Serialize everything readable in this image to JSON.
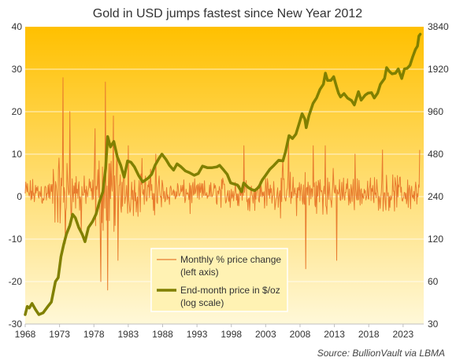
{
  "chart_data": {
    "type": "line",
    "title": "Gold in USD jumps fastest since New Year 2012",
    "source": "Source:  BullionVault via LBMA",
    "left_axis": {
      "label": "",
      "ticks": [
        40,
        30,
        20,
        10,
        0,
        -10,
        -20,
        -30
      ],
      "range": [
        -30,
        40
      ]
    },
    "right_axis": {
      "label": "",
      "scale": "log",
      "ticks": [
        3840,
        1920,
        960,
        480,
        240,
        120,
        60,
        30
      ],
      "range": [
        30,
        3840
      ]
    },
    "x_axis": {
      "ticks": [
        "1968",
        "1973",
        "1978",
        "1983",
        "1988",
        "1993",
        "1998",
        "2003",
        "2008",
        "2013",
        "2018",
        "2023"
      ],
      "range": [
        1968,
        2026
      ]
    },
    "legend_placement": "bottom-center",
    "background_gradient": {
      "top": "#ffc000",
      "bottom": "#fff8d8"
    },
    "grid": "horizontal",
    "series": [
      {
        "name": "Monthly % price change",
        "name_line2": "(left axis)",
        "axis": "left",
        "color": "#e87b2e",
        "peaks": [
          [
            1973.5,
            28
          ],
          [
            1973.8,
            -11
          ],
          [
            1974.5,
            20
          ],
          [
            1976.2,
            -9
          ],
          [
            1978.2,
            16
          ],
          [
            1979.0,
            -20
          ],
          [
            1979.7,
            27
          ],
          [
            1980.0,
            -22
          ],
          [
            1980.8,
            19
          ],
          [
            1981.5,
            -15
          ],
          [
            1983.0,
            12
          ],
          [
            1985.0,
            9
          ],
          [
            1987.0,
            10
          ],
          [
            1992.0,
            -4
          ],
          [
            1999.8,
            12
          ],
          [
            2005.5,
            9
          ],
          [
            2006.3,
            14
          ],
          [
            2008.8,
            -17
          ],
          [
            2009.9,
            12
          ],
          [
            2011.7,
            12
          ],
          [
            2013.3,
            -15
          ],
          [
            2016.0,
            10
          ],
          [
            2020.0,
            11
          ],
          [
            2025.4,
            11
          ]
        ]
      },
      {
        "name": "End-month price in $/oz",
        "name_line2": "(log scale)",
        "axis": "right",
        "color": "#808000",
        "points": [
          [
            1968.0,
            35
          ],
          [
            1968.3,
            40
          ],
          [
            1968.6,
            39
          ],
          [
            1969.0,
            42
          ],
          [
            1969.5,
            38
          ],
          [
            1970.0,
            35
          ],
          [
            1970.6,
            36
          ],
          [
            1971.3,
            40
          ],
          [
            1971.8,
            43
          ],
          [
            1972.4,
            60
          ],
          [
            1972.8,
            64
          ],
          [
            1973.2,
            90
          ],
          [
            1973.6,
            110
          ],
          [
            1974.0,
            130
          ],
          [
            1974.5,
            150
          ],
          [
            1974.9,
            180
          ],
          [
            1975.3,
            170
          ],
          [
            1975.8,
            145
          ],
          [
            1976.3,
            130
          ],
          [
            1976.7,
            115
          ],
          [
            1977.2,
            145
          ],
          [
            1977.8,
            160
          ],
          [
            1978.3,
            180
          ],
          [
            1978.8,
            220
          ],
          [
            1979.3,
            260
          ],
          [
            1979.7,
            380
          ],
          [
            1980.0,
            640
          ],
          [
            1980.4,
            540
          ],
          [
            1980.9,
            590
          ],
          [
            1981.4,
            460
          ],
          [
            1981.9,
            400
          ],
          [
            1982.4,
            330
          ],
          [
            1982.9,
            430
          ],
          [
            1983.4,
            420
          ],
          [
            1983.9,
            390
          ],
          [
            1984.5,
            340
          ],
          [
            1985.1,
            305
          ],
          [
            1985.9,
            325
          ],
          [
            1986.4,
            345
          ],
          [
            1986.9,
            400
          ],
          [
            1987.5,
            450
          ],
          [
            1987.9,
            480
          ],
          [
            1988.5,
            440
          ],
          [
            1989.0,
            400
          ],
          [
            1989.6,
            370
          ],
          [
            1990.1,
            410
          ],
          [
            1990.7,
            390
          ],
          [
            1991.3,
            365
          ],
          [
            1991.9,
            355
          ],
          [
            1992.6,
            340
          ],
          [
            1993.2,
            350
          ],
          [
            1993.8,
            395
          ],
          [
            1994.5,
            385
          ],
          [
            1995.2,
            385
          ],
          [
            1995.9,
            390
          ],
          [
            1996.3,
            400
          ],
          [
            1996.9,
            370
          ],
          [
            1997.4,
            345
          ],
          [
            1997.9,
            300
          ],
          [
            1998.4,
            295
          ],
          [
            1998.9,
            290
          ],
          [
            1999.5,
            260
          ],
          [
            1999.8,
            300
          ],
          [
            2000.4,
            280
          ],
          [
            2000.9,
            270
          ],
          [
            2001.4,
            265
          ],
          [
            2002.0,
            280
          ],
          [
            2002.5,
            315
          ],
          [
            2003.0,
            340
          ],
          [
            2003.6,
            375
          ],
          [
            2004.2,
            400
          ],
          [
            2004.9,
            435
          ],
          [
            2005.5,
            430
          ],
          [
            2005.9,
            500
          ],
          [
            2006.4,
            650
          ],
          [
            2006.9,
            620
          ],
          [
            2007.4,
            665
          ],
          [
            2007.9,
            800
          ],
          [
            2008.3,
            930
          ],
          [
            2008.7,
            850
          ],
          [
            2008.9,
            740
          ],
          [
            2009.3,
            900
          ],
          [
            2009.9,
            1100
          ],
          [
            2010.4,
            1200
          ],
          [
            2010.9,
            1380
          ],
          [
            2011.4,
            1500
          ],
          [
            2011.7,
            1800
          ],
          [
            2012.0,
            1600
          ],
          [
            2012.5,
            1600
          ],
          [
            2012.9,
            1700
          ],
          [
            2013.3,
            1450
          ],
          [
            2013.6,
            1300
          ],
          [
            2013.9,
            1220
          ],
          [
            2014.4,
            1290
          ],
          [
            2014.9,
            1200
          ],
          [
            2015.5,
            1150
          ],
          [
            2015.9,
            1070
          ],
          [
            2016.5,
            1330
          ],
          [
            2016.9,
            1160
          ],
          [
            2017.5,
            1260
          ],
          [
            2017.9,
            1300
          ],
          [
            2018.4,
            1310
          ],
          [
            2018.8,
            1200
          ],
          [
            2019.3,
            1300
          ],
          [
            2019.7,
            1500
          ],
          [
            2020.3,
            1650
          ],
          [
            2020.6,
            1970
          ],
          [
            2021.0,
            1850
          ],
          [
            2021.4,
            1780
          ],
          [
            2021.9,
            1800
          ],
          [
            2022.3,
            1930
          ],
          [
            2022.8,
            1650
          ],
          [
            2023.2,
            1930
          ],
          [
            2023.6,
            1950
          ],
          [
            2024.0,
            2050
          ],
          [
            2024.4,
            2350
          ],
          [
            2024.8,
            2650
          ],
          [
            2025.1,
            2800
          ],
          [
            2025.3,
            3300
          ],
          [
            2025.5,
            3400
          ]
        ]
      }
    ]
  }
}
